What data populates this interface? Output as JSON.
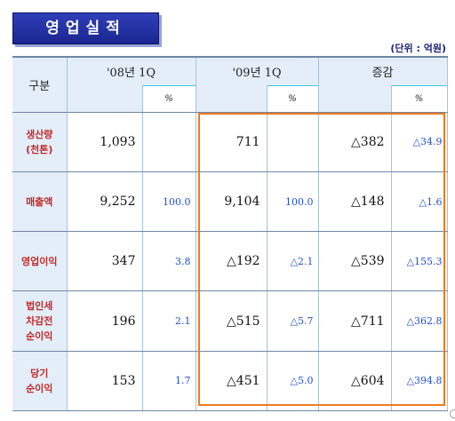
{
  "title": "영업실적",
  "unit": "(단위 : 억원)",
  "headers": {
    "category": "구분",
    "period_2008": "'08년 1Q",
    "period_2009": "'09년 1Q",
    "change": "증감",
    "pct": "%"
  },
  "rows": [
    {
      "label": "생산량\n(천톤)",
      "v2008": "1,093",
      "p2008": "",
      "v2009": "711",
      "p2009": "",
      "chg": "△382",
      "pchg": "△34.9"
    },
    {
      "label": "매출액",
      "v2008": "9,252",
      "p2008": "100.0",
      "v2009": "9,104",
      "p2009": "100.0",
      "chg": "△148",
      "pchg": "△1.6"
    },
    {
      "label": "영업이익",
      "v2008": "347",
      "p2008": "3.8",
      "v2009": "△192",
      "p2009": "△2.1",
      "chg": "△539",
      "pchg": "△155.3"
    },
    {
      "label": "법인세\n차감전\n순이익",
      "v2008": "196",
      "p2008": "2.1",
      "v2009": "△515",
      "p2009": "△5.7",
      "chg": "△711",
      "pchg": "△362.8"
    },
    {
      "label": "당기\n순이익",
      "v2008": "153",
      "p2008": "1.7",
      "v2009": "△451",
      "p2009": "△5.0",
      "chg": "△604",
      "pchg": "△394.8"
    }
  ]
}
